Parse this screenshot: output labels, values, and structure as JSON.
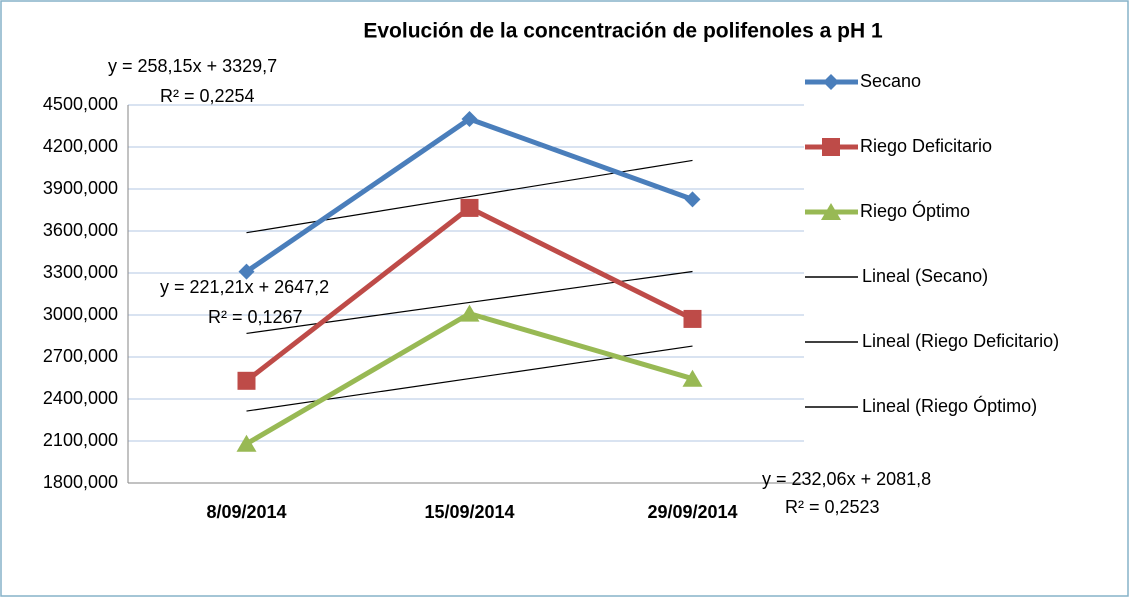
{
  "chart_data": {
    "type": "line",
    "title": "Evolución de la concentración de polifenoles a pH 1",
    "categories": [
      "8/09/2014",
      "15/09/2014",
      "29/09/2014"
    ],
    "series": [
      {
        "name": "Secano",
        "color": "#4a7ebb",
        "marker": "diamond",
        "values": [
          3310,
          4400,
          3826
        ]
      },
      {
        "name": "Riego Deficitario",
        "color": "#be4b48",
        "marker": "square",
        "values": [
          2530,
          3765,
          2972
        ]
      },
      {
        "name": "Riego Óptimo",
        "color": "#98b954",
        "marker": "triangle",
        "values": [
          2080,
          3010,
          2545
        ]
      }
    ],
    "trendlines": [
      {
        "name": "Lineal (Secano)",
        "color": "#000000",
        "values": [
          3587.85,
          3846,
          4104.15
        ],
        "equation": "y = 258,15x + 3329,7",
        "r2": "R² = 0,2254"
      },
      {
        "name": "Lineal (Riego Deficitario)",
        "color": "#000000",
        "values": [
          2868.41,
          3089.62,
          3310.83
        ],
        "equation": "y = 221,21x + 2647,2",
        "r2": "R² = 0,1267"
      },
      {
        "name": "Lineal (Riego Óptimo)",
        "color": "#000000",
        "values": [
          2313.86,
          2545.92,
          2777.98
        ],
        "equation": "y = 232,06x + 2081,8",
        "r2": "R² = 0,2523"
      }
    ],
    "ylim": [
      1800,
      4500
    ],
    "yticks": [
      {
        "value": 1800,
        "label": "1800,000"
      },
      {
        "value": 2100,
        "label": "2100,000"
      },
      {
        "value": 2400,
        "label": "2400,000"
      },
      {
        "value": 2700,
        "label": "2700,000"
      },
      {
        "value": 3000,
        "label": "3000,000"
      },
      {
        "value": 3300,
        "label": "3300,000"
      },
      {
        "value": 3600,
        "label": "3600,000"
      },
      {
        "value": 3900,
        "label": "3900,000"
      },
      {
        "value": 4200,
        "label": "4200,000"
      },
      {
        "value": 4500,
        "label": "4500,000"
      }
    ],
    "grid": true,
    "legend": "right"
  }
}
